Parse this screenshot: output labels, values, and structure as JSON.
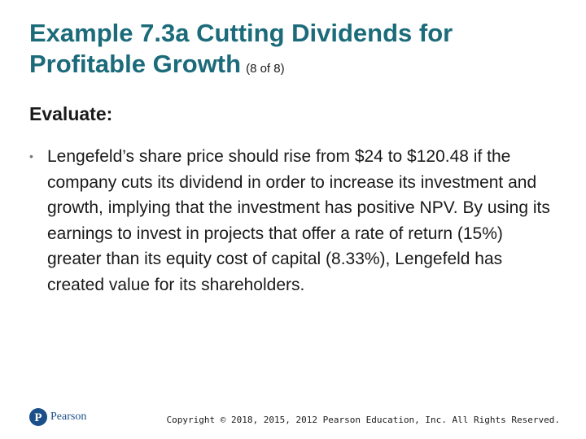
{
  "slide": {
    "title": "Example 7.3a Cutting Dividends for Profitable Growth",
    "subtitle": "(8 of 8)",
    "section_heading": "Evaluate:",
    "bullets": [
      "Lengefeld’s share price should rise from $24 to $120.48 if the company cuts its dividend in order to increase its investment and growth, implying that the investment has positive NPV. By using its earnings to invest in projects that offer a rate of return (15%) greater than its equity cost of capital (8.33%), Lengefeld has created value for its shareholders."
    ],
    "bullet_symbol": "•"
  },
  "footer": {
    "logo_text": "Pearson",
    "logo_icon": "pearson-logo-icon",
    "copyright": "Copyright © 2018, 2015, 2012 Pearson Education, Inc. All Rights Reserved."
  },
  "colors": {
    "title": "#1b6b7a",
    "text": "#1a1a1a",
    "bullet": "#7a7a7a",
    "logo": "#1b4f8a"
  }
}
